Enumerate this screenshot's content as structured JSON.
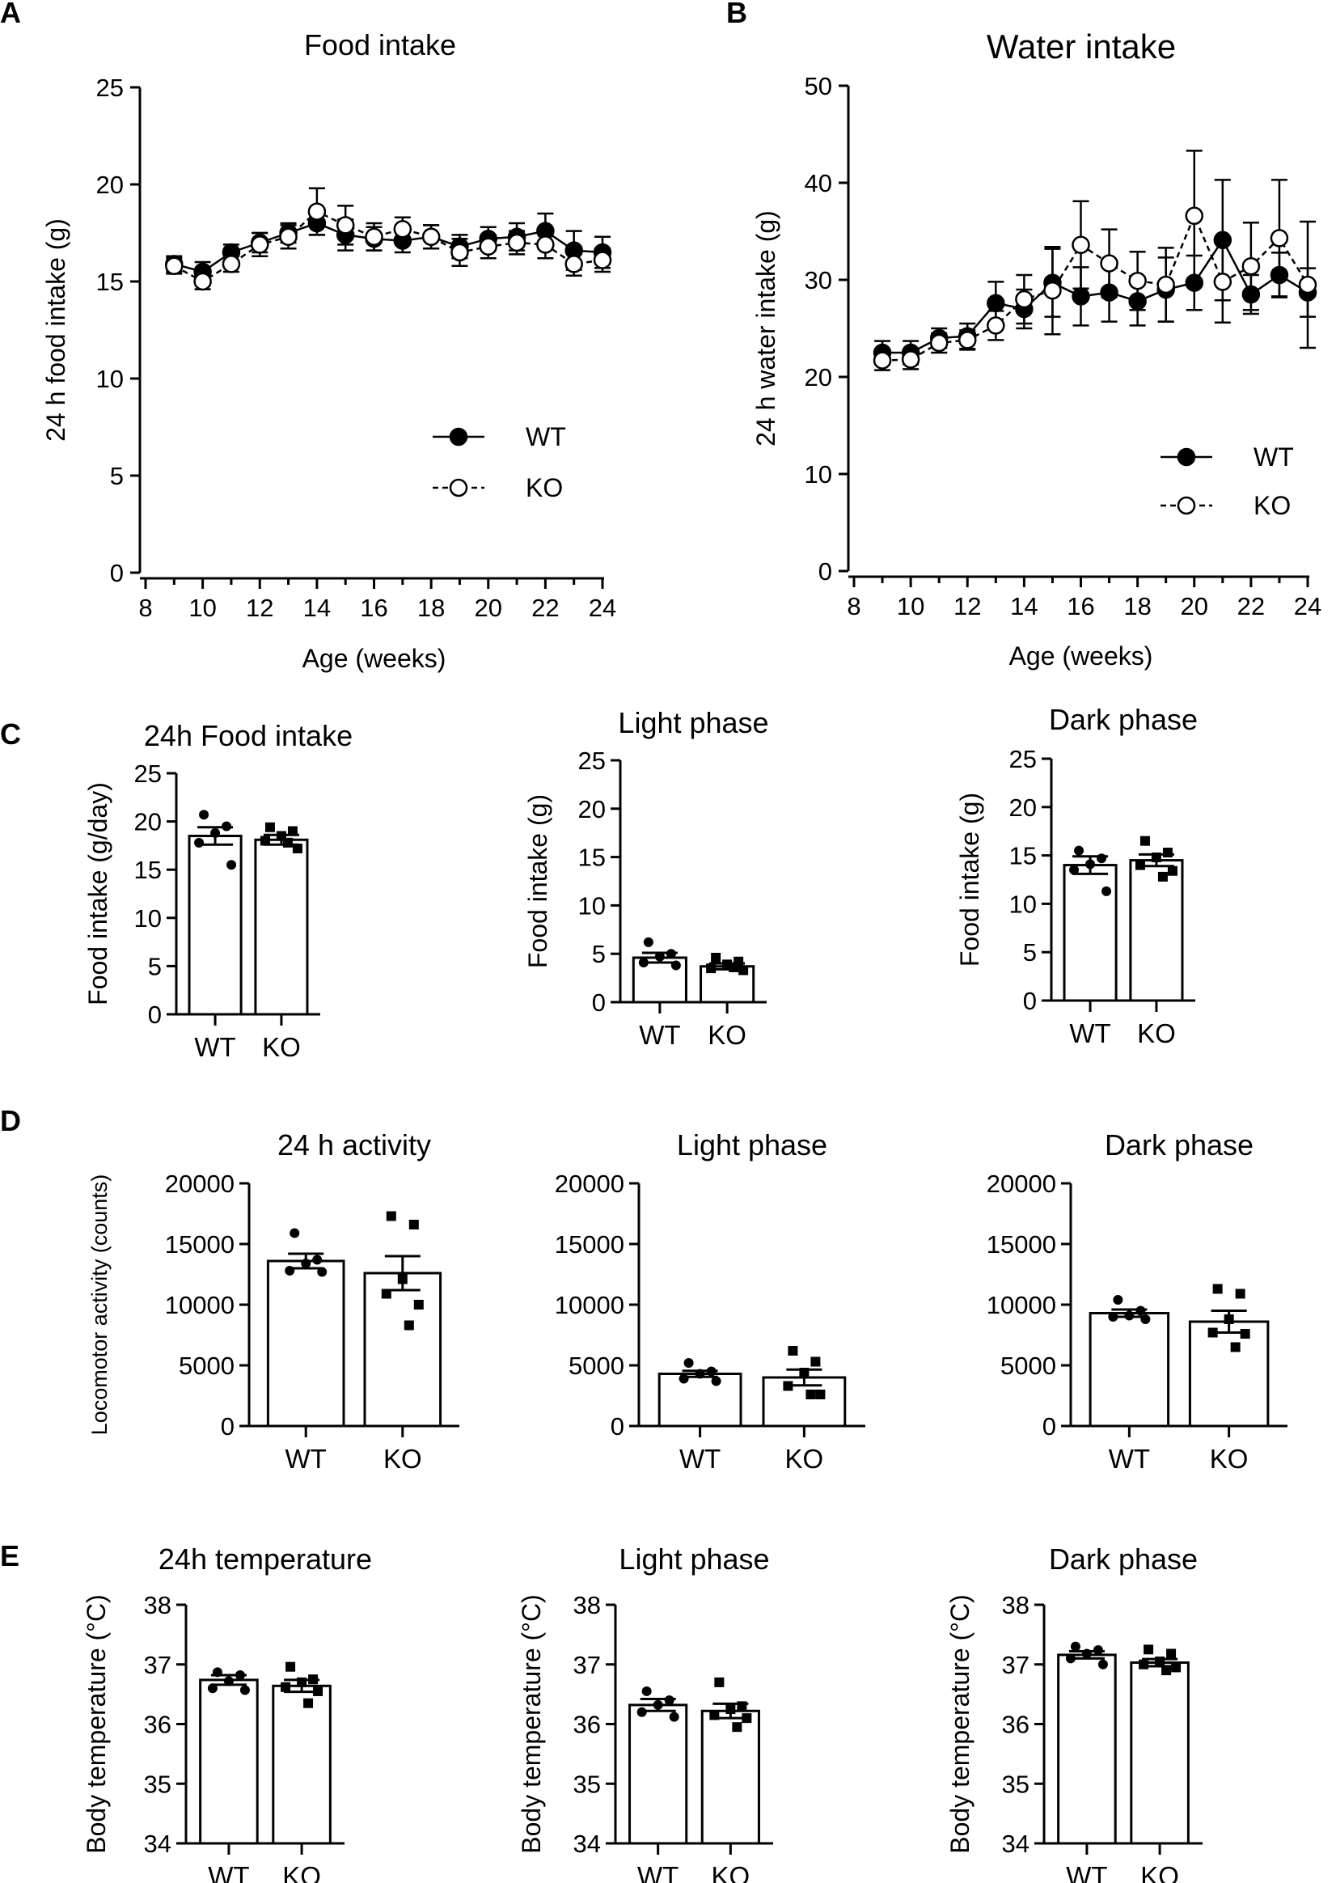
{
  "figure": {
    "panel_labels": [
      "A",
      "B",
      "C",
      "D",
      "E"
    ]
  },
  "chart_data": [
    {
      "id": "A",
      "type": "line",
      "title": "Food intake",
      "xlabel": "Age (weeks)",
      "ylabel": "24 h food intake (g)",
      "xlim": [
        8,
        24
      ],
      "ylim": [
        0,
        25
      ],
      "xticks": [
        "8",
        "10",
        "12",
        "14",
        "16",
        "18",
        "20",
        "22",
        "24"
      ],
      "yticks": [
        "0",
        "5",
        "10",
        "15",
        "20",
        "25"
      ],
      "legend": {
        "position": "lower-right",
        "entries": [
          "WT",
          "KO"
        ]
      },
      "x": [
        9,
        10,
        11,
        12,
        13,
        14,
        15,
        16,
        17,
        18,
        19,
        20,
        21,
        22,
        23,
        24
      ],
      "series": [
        {
          "name": "WT",
          "marker": "filled-circle",
          "line": "solid",
          "values": [
            15.9,
            15.5,
            16.5,
            17.0,
            17.5,
            18.0,
            17.4,
            17.2,
            17.1,
            17.3,
            16.8,
            17.2,
            17.3,
            17.6,
            16.6,
            16.5
          ],
          "errors": [
            0.4,
            0.5,
            0.4,
            0.5,
            0.5,
            0.6,
            0.8,
            0.6,
            0.6,
            0.6,
            0.6,
            0.6,
            0.7,
            0.9,
            1.0,
            0.8
          ]
        },
        {
          "name": "KO",
          "marker": "open-circle",
          "line": "dashed",
          "values": [
            15.8,
            15.0,
            15.9,
            16.9,
            17.3,
            18.6,
            17.9,
            17.3,
            17.7,
            17.3,
            16.5,
            16.8,
            17.0,
            16.9,
            15.9,
            16.1
          ],
          "errors": [
            0.4,
            0.4,
            0.4,
            0.6,
            0.6,
            1.2,
            1.0,
            0.7,
            0.6,
            0.6,
            0.7,
            0.6,
            0.6,
            0.7,
            0.6,
            0.6
          ]
        }
      ]
    },
    {
      "id": "B",
      "type": "line",
      "title": "Water intake",
      "xlabel": "Age (weeks)",
      "ylabel": "24 h water intake (g)",
      "xlim": [
        8,
        24
      ],
      "ylim": [
        0,
        50
      ],
      "xticks": [
        "8",
        "10",
        "12",
        "14",
        "16",
        "18",
        "20",
        "22",
        "24"
      ],
      "yticks": [
        "0",
        "10",
        "20",
        "30",
        "40",
        "50"
      ],
      "legend": {
        "position": "lower-right",
        "entries": [
          "WT",
          "KO"
        ]
      },
      "x": [
        9,
        10,
        11,
        12,
        13,
        14,
        15,
        16,
        17,
        18,
        19,
        20,
        21,
        22,
        23,
        24
      ],
      "series": [
        {
          "name": "WT",
          "marker": "filled-circle",
          "line": "solid",
          "values": [
            22.5,
            22.5,
            24.0,
            24.2,
            27.6,
            27.0,
            29.7,
            28.3,
            28.7,
            27.8,
            29.0,
            29.7,
            34.1,
            28.5,
            30.5,
            28.7
          ],
          "errors": [
            1.2,
            1.2,
            1.0,
            1.3,
            2.2,
            2.0,
            3.5,
            3.0,
            3.0,
            2.5,
            3.3,
            2.8,
            6.2,
            2.0,
            2.3,
            2.5
          ]
        },
        {
          "name": "KO",
          "marker": "open-circle",
          "line": "dashed",
          "values": [
            21.7,
            21.8,
            23.5,
            23.8,
            25.3,
            28.0,
            28.9,
            33.6,
            31.7,
            29.9,
            29.5,
            36.6,
            29.8,
            31.4,
            34.3,
            29.5
          ],
          "errors": [
            1.0,
            1.0,
            1.0,
            1.0,
            1.5,
            2.5,
            4.5,
            4.5,
            3.5,
            3.0,
            3.8,
            6.7,
            4.2,
            4.5,
            6.0,
            6.5
          ]
        }
      ]
    },
    {
      "id": "C1",
      "type": "bar",
      "title": "24h Food intake",
      "ylabel": "Food intake (g/day)",
      "ylim": [
        0,
        25
      ],
      "categories": [
        "WT",
        "KO"
      ],
      "yticks": [
        "0",
        "5",
        "10",
        "15",
        "20",
        "25"
      ],
      "values": [
        18.5,
        18.1
      ],
      "errors": [
        0.9,
        0.5
      ],
      "points": [
        [
          20.7,
          19.5,
          18.8,
          17.8,
          15.5
        ],
        [
          19.4,
          19.0,
          18.5,
          18.0,
          17.2,
          17.8
        ]
      ]
    },
    {
      "id": "C2",
      "type": "bar",
      "title": "Light phase",
      "ylabel": "Food intake (g)",
      "ylim": [
        0,
        25
      ],
      "categories": [
        "WT",
        "KO"
      ],
      "yticks": [
        "0",
        "5",
        "10",
        "15",
        "20",
        "25"
      ],
      "values": [
        4.6,
        3.7
      ],
      "errors": [
        0.5,
        0.3
      ],
      "points": [
        [
          6.2,
          5.0,
          4.7,
          4.1,
          3.8
        ],
        [
          4.6,
          4.2,
          3.9,
          3.5,
          3.3,
          3.6
        ]
      ]
    },
    {
      "id": "C3",
      "type": "bar",
      "title": "Dark phase",
      "ylabel": "Food intake (g)",
      "ylim": [
        0,
        25
      ],
      "categories": [
        "WT",
        "KO"
      ],
      "yticks": [
        "0",
        "5",
        "10",
        "15",
        "20",
        "25"
      ],
      "values": [
        14.0,
        14.5
      ],
      "errors": [
        0.9,
        0.6
      ],
      "points": [
        [
          15.5,
          14.7,
          14.1,
          13.5,
          11.3
        ],
        [
          16.5,
          15.3,
          14.8,
          14.0,
          13.4,
          12.8
        ]
      ]
    },
    {
      "id": "D1",
      "type": "bar",
      "title": "24 h activity",
      "ylabel": "Locomotor activity (counts)",
      "ylim": [
        0,
        20000
      ],
      "categories": [
        "WT",
        "KO"
      ],
      "yticks": [
        "0",
        "5000",
        "10000",
        "15000",
        "20000"
      ],
      "values": [
        13600,
        12600
      ],
      "errors": [
        600,
        1400
      ],
      "points": [
        [
          15900,
          13700,
          13400,
          12800,
          12700
        ],
        [
          17300,
          16600,
          12100,
          10900,
          10000,
          8300
        ]
      ]
    },
    {
      "id": "D2",
      "type": "bar",
      "title": "Light phase",
      "ylabel": "",
      "ylim": [
        0,
        20000
      ],
      "categories": [
        "WT",
        "KO"
      ],
      "yticks": [
        "0",
        "5000",
        "10000",
        "15000",
        "20000"
      ],
      "values": [
        4300,
        4000
      ],
      "errors": [
        250,
        650
      ],
      "points": [
        [
          5200,
          4500,
          4300,
          3900,
          3700
        ],
        [
          6200,
          5300,
          4400,
          3300,
          2600,
          2600
        ]
      ]
    },
    {
      "id": "D3",
      "type": "bar",
      "title": "Dark phase",
      "ylabel": "",
      "ylim": [
        0,
        20000
      ],
      "categories": [
        "WT",
        "KO"
      ],
      "yticks": [
        "0",
        "5000",
        "10000",
        "15000",
        "20000"
      ],
      "values": [
        9300,
        8600
      ],
      "errors": [
        300,
        900
      ],
      "points": [
        [
          10400,
          9500,
          9100,
          9000,
          8800
        ],
        [
          11300,
          10900,
          8800,
          7700,
          7600,
          6500
        ]
      ]
    },
    {
      "id": "E1",
      "type": "bar",
      "title": "24h temperature",
      "ylabel": "Body temperature (°C)",
      "ylim": [
        34,
        38
      ],
      "categories": [
        "WT",
        "KO"
      ],
      "yticks": [
        "34",
        "35",
        "36",
        "37",
        "38"
      ],
      "values": [
        36.74,
        36.64
      ],
      "errors": [
        0.08,
        0.1
      ],
      "points": [
        [
          36.87,
          36.82,
          36.72,
          36.6,
          36.57
        ],
        [
          36.96,
          36.75,
          36.7,
          36.62,
          36.55,
          36.35
        ]
      ]
    },
    {
      "id": "E2",
      "type": "bar",
      "title": "Light phase",
      "ylabel": "Body temperature (°C)",
      "ylim": [
        34,
        38
      ],
      "categories": [
        "WT",
        "KO"
      ],
      "yticks": [
        "34",
        "35",
        "36",
        "37",
        "38"
      ],
      "values": [
        36.32,
        36.22
      ],
      "errors": [
        0.1,
        0.12
      ],
      "points": [
        [
          36.55,
          36.4,
          36.32,
          36.2,
          36.12
        ],
        [
          36.7,
          36.3,
          36.25,
          36.15,
          36.1,
          35.95
        ]
      ]
    },
    {
      "id": "E3",
      "type": "bar",
      "title": "Dark phase",
      "ylabel": "Body temperature (°C)",
      "ylim": [
        34,
        38
      ],
      "categories": [
        "WT",
        "KO"
      ],
      "yticks": [
        "34",
        "35",
        "36",
        "37",
        "38"
      ],
      "values": [
        37.16,
        37.03
      ],
      "errors": [
        0.06,
        0.06
      ],
      "points": [
        [
          37.3,
          37.24,
          37.18,
          37.1,
          37.0
        ],
        [
          37.25,
          37.18,
          37.05,
          37.0,
          36.95,
          36.9
        ]
      ]
    }
  ]
}
